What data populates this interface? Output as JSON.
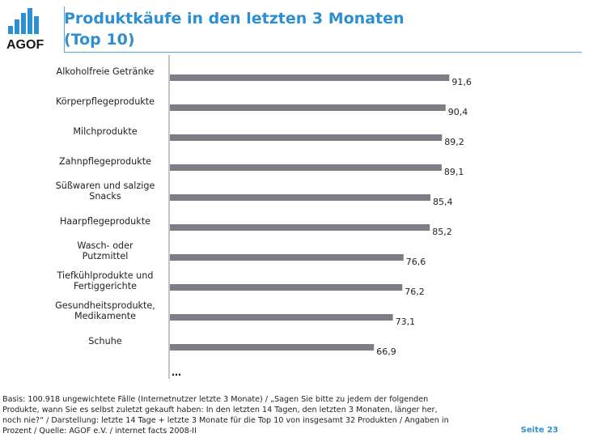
{
  "brand": {
    "logo_text": "AGOF",
    "color": "#2e8fd0"
  },
  "header": {
    "title_line1": "Produktkäufe in den letzten 3 Monaten",
    "title_line2": "(Top 10)"
  },
  "chart_data": {
    "type": "bar",
    "orientation": "horizontal",
    "categories": [
      [
        "Alkoholfreie Getränke"
      ],
      [
        "Körperpflegeprodukte"
      ],
      [
        "Milchprodukte"
      ],
      [
        "Zahnpflegeprodukte"
      ],
      [
        "Süßwaren und salzige",
        "Snacks"
      ],
      [
        "Haarpflegeprodukte"
      ],
      [
        "Wasch- oder",
        "Putzmittel"
      ],
      [
        "Tiefkühlprodukte und",
        "Fertiggerichte"
      ],
      [
        "Gesundheitsprodukte,",
        "Medikamente"
      ],
      [
        "Schuhe"
      ]
    ],
    "values": [
      91.6,
      90.4,
      89.2,
      89.1,
      85.4,
      85.2,
      76.6,
      76.2,
      73.1,
      66.9
    ],
    "value_labels": [
      "91,6",
      "90,4",
      "89,2",
      "89,1",
      "85,4",
      "85,2",
      "76,6",
      "76,2",
      "73,1",
      "66,9"
    ],
    "xlim": [
      0,
      100
    ],
    "continuation_label": "…",
    "bar_color": "#7e7d86"
  },
  "footer": {
    "lines": [
      "Basis: 100.918 ungewichtete Fälle (Internetnutzer letzte 3 Monate) / „Sagen Sie bitte zu jedem der folgenden",
      "Produkte, wann Sie es selbst zuletzt gekauft haben: In den letzten 14 Tagen, den letzten 3 Monaten, länger her,",
      "noch nie?“ / Darstellung: letzte 14 Tage + letzte 3 Monate für die Top 10 von insgesamt 32 Produkten / Angaben in",
      "Prozent / Quelle: AGOF e.V. / internet facts 2008-II"
    ],
    "page_label": "Seite 23"
  }
}
